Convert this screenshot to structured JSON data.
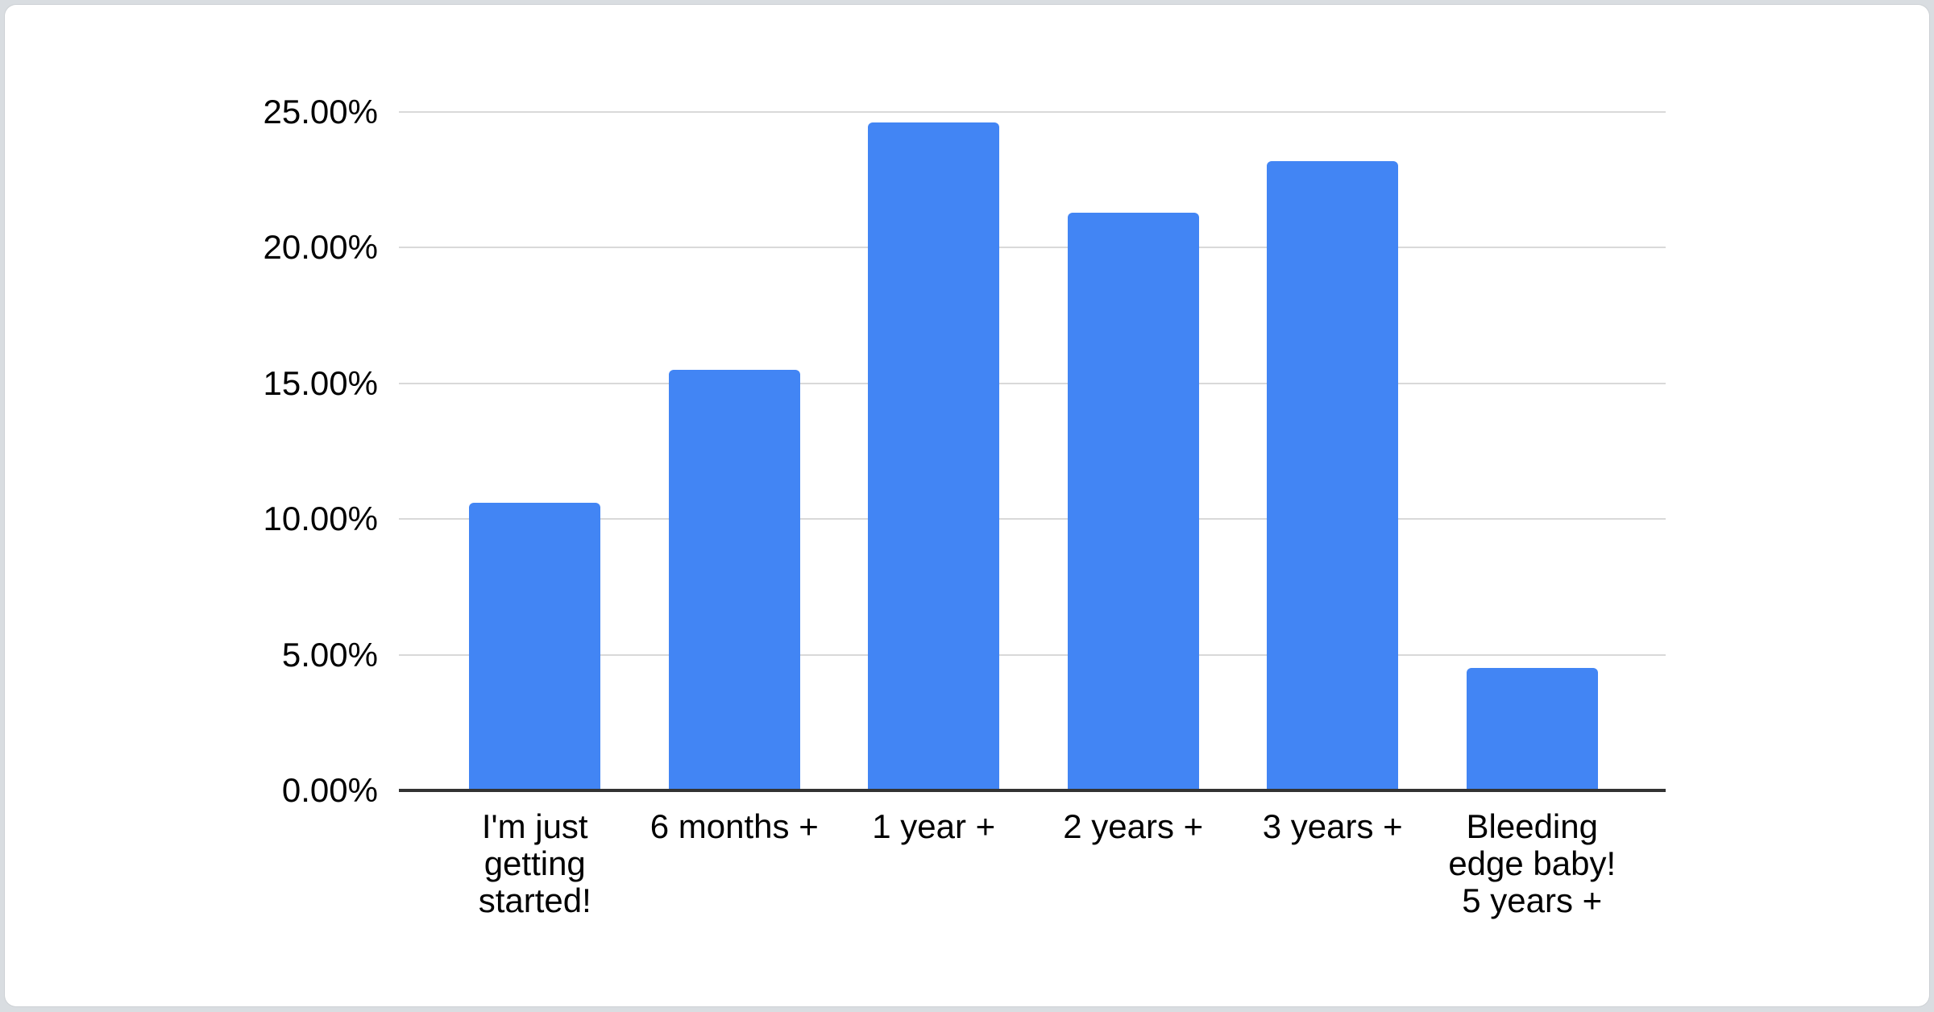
{
  "page": {
    "background_color": "#d9dde1",
    "card_color": "#ffffff"
  },
  "chart_data": {
    "type": "bar",
    "title": "",
    "categories": [
      "I'm just getting started!",
      "6 months +",
      "1 year +",
      "2 years +",
      "3 years +",
      "Bleeding edge baby! 5 years +"
    ],
    "category_lines": [
      [
        "I'm just",
        "getting",
        "started!"
      ],
      [
        "6 months +"
      ],
      [
        "1 year +"
      ],
      [
        "2 years +"
      ],
      [
        "3 years +"
      ],
      [
        "Bleeding",
        "edge baby!",
        "5 years +"
      ]
    ],
    "values": [
      10.6,
      15.5,
      24.6,
      21.3,
      23.2,
      4.5
    ],
    "unit": "%",
    "ylim": [
      0,
      25
    ],
    "y_ticks": [
      0,
      5,
      10,
      15,
      20,
      25
    ],
    "y_tick_labels": [
      "0.00%",
      "5.00%",
      "10.00%",
      "15.00%",
      "20.00%",
      "25.00%"
    ],
    "grid": true,
    "legend_position": "none",
    "bar_color": "#4285f4",
    "gridline_color": "#d9d9d9",
    "axis_line_color": "#333333",
    "label_color": "#000000"
  }
}
